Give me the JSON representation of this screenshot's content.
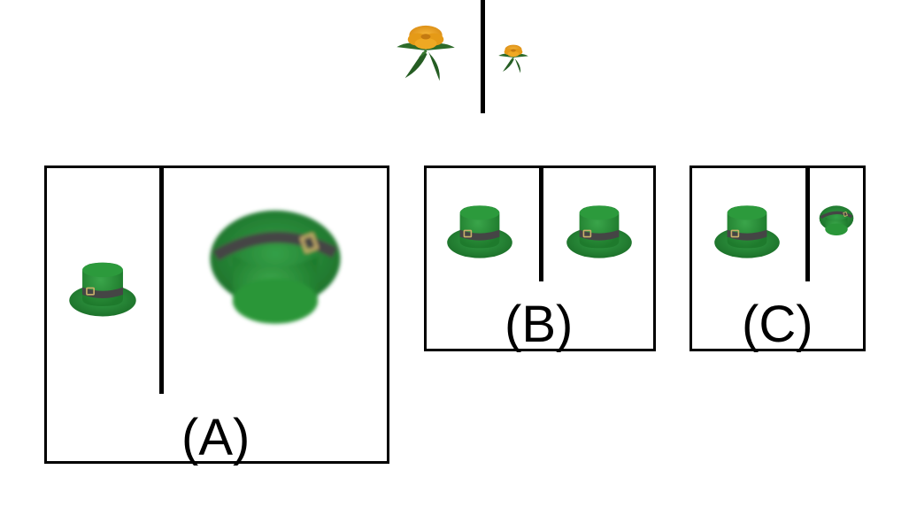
{
  "options": [
    {
      "id": "A",
      "label": "(A)"
    },
    {
      "id": "B",
      "label": "(B)"
    },
    {
      "id": "C",
      "label": "(C)"
    }
  ],
  "colors": {
    "hat_green": "#2f8f3a",
    "hat_green_dark": "#1f6b29",
    "hat_band": "#4a4a4a",
    "buckle": "#b8a46a",
    "flower_orange": "#e8a11e",
    "leaf_green": "#2d6b2a",
    "divider": "#000000"
  }
}
